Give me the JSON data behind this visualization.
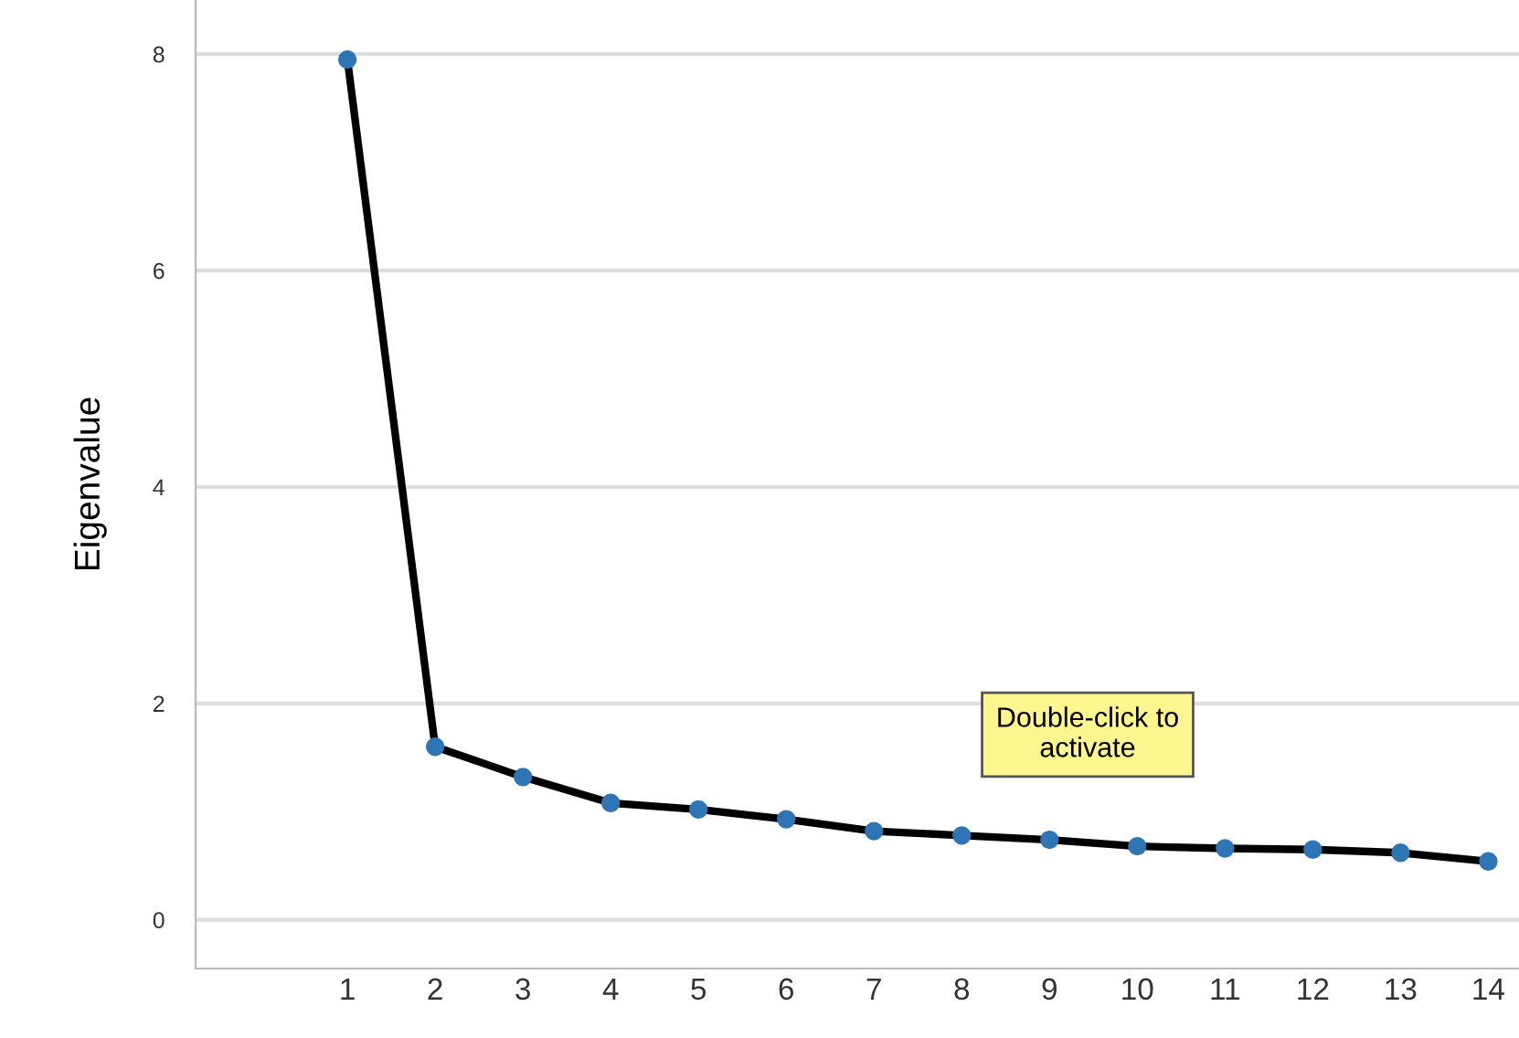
{
  "chart_data": {
    "type": "line",
    "ylabel": "Eigenvalue",
    "categories": [
      "1",
      "2",
      "3",
      "4",
      "5",
      "6",
      "7",
      "8",
      "9",
      "10",
      "11",
      "12",
      "13",
      "14"
    ],
    "series": [
      {
        "color": "#000000",
        "colors": [
          "#2e75b6",
          "#2e75b6",
          "#2e75b6",
          "#2e75b6",
          "#2e75b6",
          "#2e75b6",
          "#2e75b6",
          "#2e75b6",
          "#2e75b6",
          "#2e75b6",
          "#2e75b6",
          "#2e75b6",
          "#2e75b6",
          "#2e75b6"
        ],
        "values": [
          7.95,
          1.6,
          1.32,
          1.08,
          1.02,
          0.93,
          0.82,
          0.78,
          0.74,
          0.68,
          0.66,
          0.65,
          0.62,
          0.54
        ]
      }
    ],
    "ylim": [
      -0.45,
      8.5
    ],
    "yticks": [
      0,
      2,
      4,
      6,
      8
    ],
    "grid": "y",
    "marker": "circle",
    "line_style": "solid",
    "legend": false,
    "annotations": [
      "Double-click to\nactivate"
    ]
  }
}
